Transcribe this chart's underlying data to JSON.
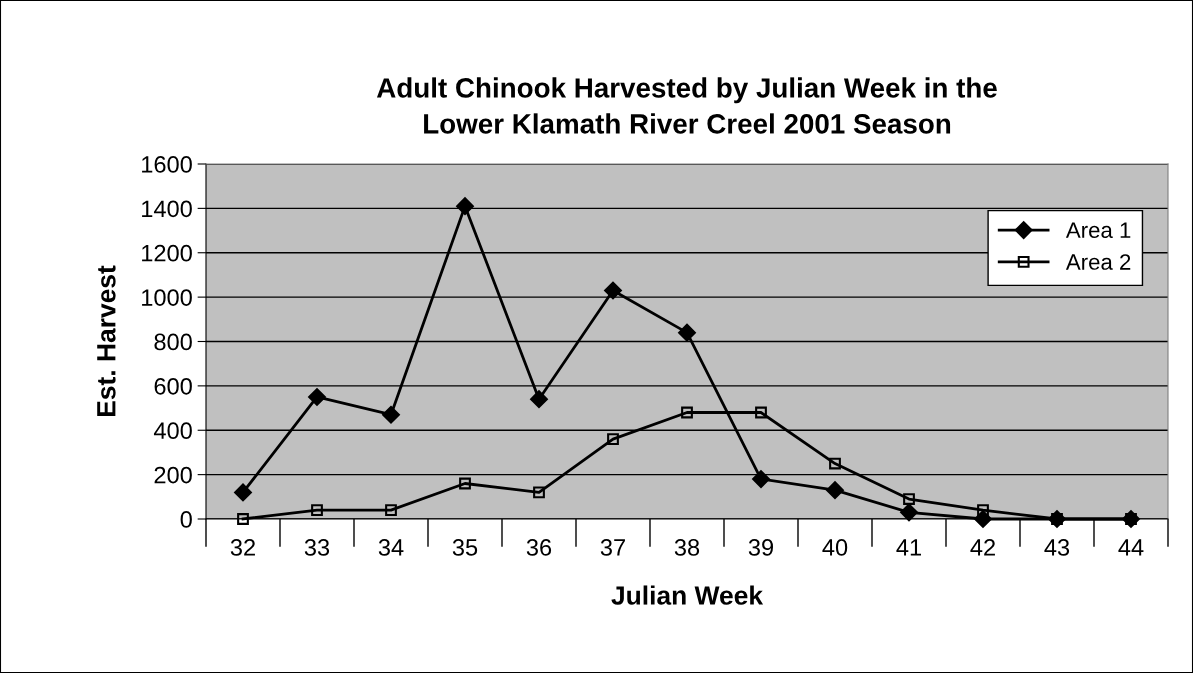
{
  "chart_data": {
    "type": "line",
    "title": "Adult Chinook Harvested by Julian Week in the\nLower Klamath River Creel 2001 Season",
    "xlabel": "Julian Week",
    "ylabel": "Est. Harvest",
    "categories": [
      "32",
      "33",
      "34",
      "35",
      "36",
      "37",
      "38",
      "39",
      "40",
      "41",
      "42",
      "43",
      "44"
    ],
    "series": [
      {
        "name": "Area 1",
        "color": "#000000",
        "marker": "diamond",
        "values": [
          120,
          550,
          470,
          1410,
          540,
          1030,
          840,
          180,
          130,
          30,
          0,
          0,
          0
        ]
      },
      {
        "name": "Area 2",
        "color": "#000000",
        "marker": "square",
        "values": [
          0,
          40,
          40,
          160,
          120,
          360,
          480,
          480,
          250,
          90,
          40,
          0,
          0
        ]
      }
    ],
    "ylim": [
      0,
      1600
    ],
    "yticks": [
      0,
      200,
      400,
      600,
      800,
      1000,
      1200,
      1400,
      1600
    ],
    "grid": "y",
    "legend": "top right",
    "line_style": "solid"
  }
}
